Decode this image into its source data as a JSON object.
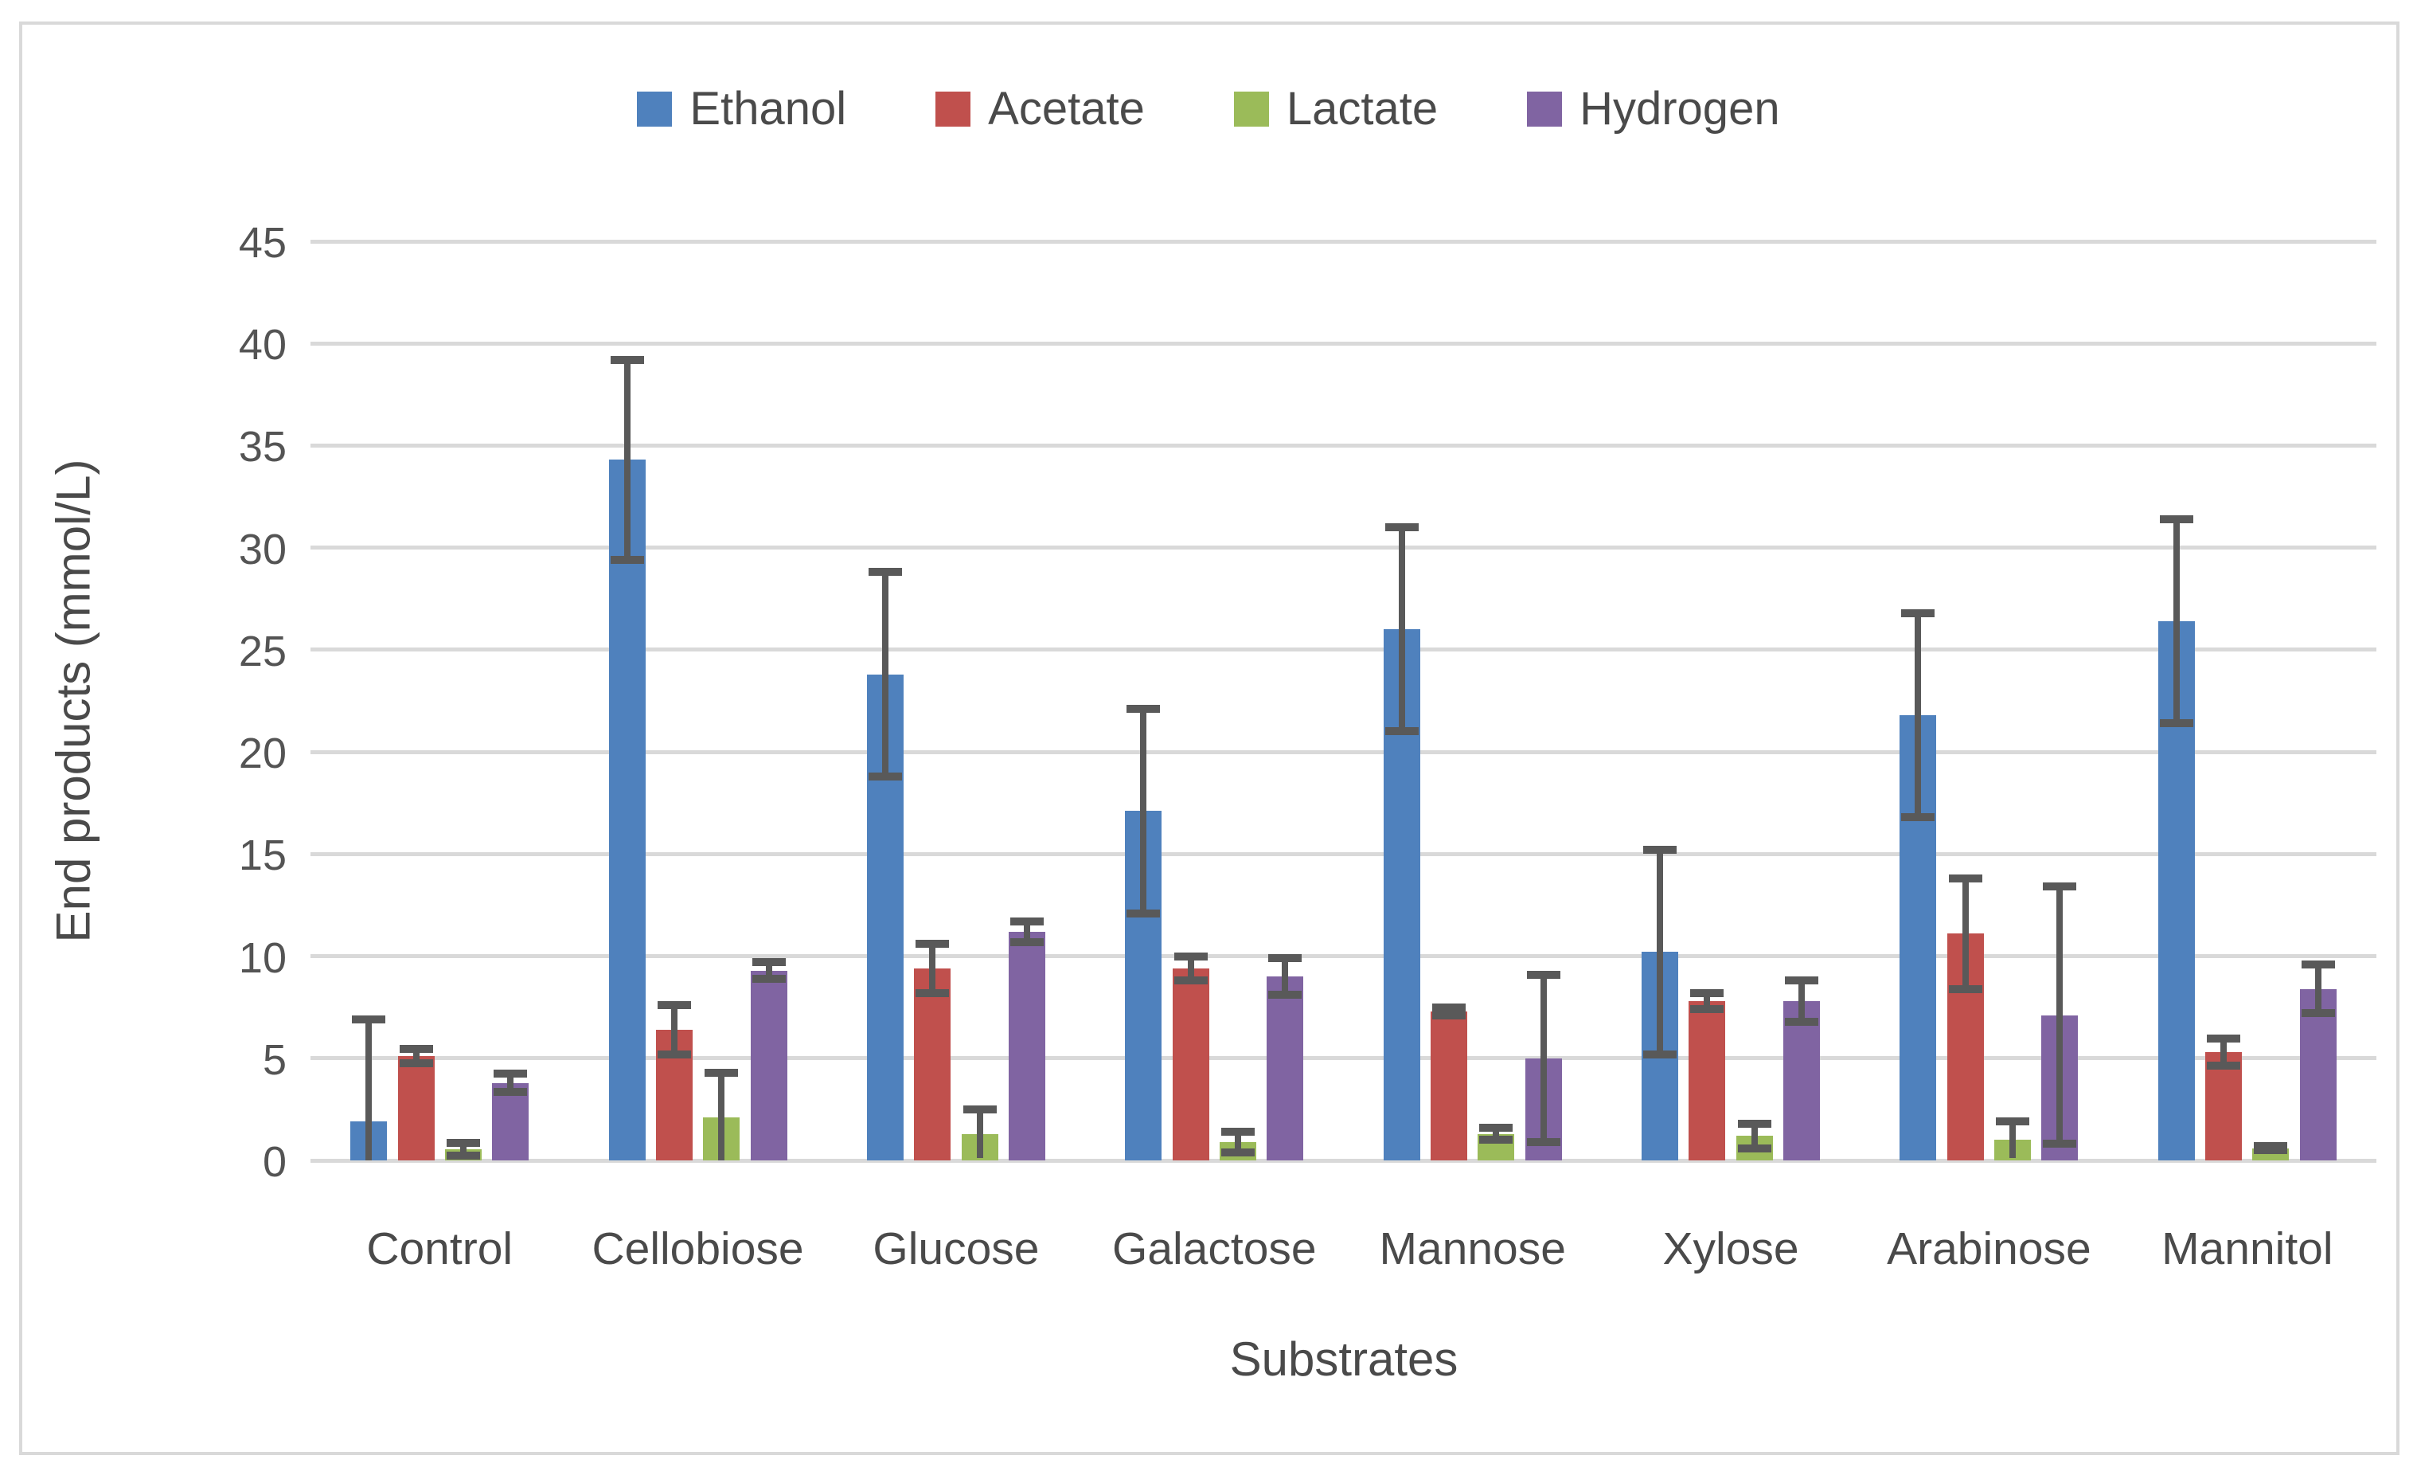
{
  "window": {
    "background": "#ffffff",
    "frame_border_color": "#d9d9d9"
  },
  "legend": {
    "position": "top-center",
    "items": [
      {
        "label": "Ethanol",
        "color": "#4f81bd"
      },
      {
        "label": "Acetate",
        "color": "#c0504d"
      },
      {
        "label": "Lactate",
        "color": "#9bbb59"
      },
      {
        "label": "Hydrogen",
        "color": "#8064a2"
      }
    ]
  },
  "y_axis": {
    "title": "End products (mmol/L)",
    "tick_labels": [
      "0",
      "5",
      "10",
      "15",
      "20",
      "25",
      "30",
      "35",
      "40",
      "45"
    ],
    "min": 0,
    "max": 45,
    "gridline_color": "#d9d9d9",
    "text_color": "#545454"
  },
  "x_axis": {
    "title": "Substrates",
    "labels": [
      "Control",
      "Cellobiose",
      "Glucose",
      "Galactose",
      "Mannose",
      "Xylose",
      "Arabinose",
      "Mannitol"
    ]
  },
  "chart_data": {
    "type": "bar",
    "title": "",
    "xlabel": "Substrates",
    "ylabel": "End products (mmol/L)",
    "ylim": [
      0,
      45
    ],
    "grid": true,
    "legend_position": "top",
    "error_bar_color": "#595959",
    "categories": [
      "Control",
      "Cellobiose",
      "Glucose",
      "Galactose",
      "Mannose",
      "Xylose",
      "Arabinose",
      "Mannitol"
    ],
    "series": [
      {
        "name": "Ethanol",
        "color": "#4f81bd",
        "values": [
          1.9,
          34.3,
          23.8,
          17.1,
          26.0,
          10.2,
          21.8,
          26.4
        ],
        "errors": [
          5.0,
          4.9,
          5.0,
          5.0,
          5.0,
          5.0,
          5.0,
          5.0
        ]
      },
      {
        "name": "Acetate",
        "color": "#c0504d",
        "values": [
          5.1,
          6.4,
          9.4,
          9.4,
          7.3,
          7.8,
          11.1,
          5.3
        ],
        "errors": [
          0.35,
          1.2,
          1.2,
          0.6,
          0.2,
          0.4,
          2.7,
          0.65
        ]
      },
      {
        "name": "Lactate",
        "color": "#9bbb59",
        "values": [
          0.55,
          2.1,
          1.3,
          0.9,
          1.3,
          1.2,
          1.0,
          0.6
        ],
        "errors": [
          0.3,
          2.2,
          1.2,
          0.5,
          0.3,
          0.6,
          0.9,
          0.1
        ]
      },
      {
        "name": "Hydrogen",
        "color": "#8064a2",
        "values": [
          3.8,
          9.3,
          11.2,
          9.0,
          5.0,
          7.8,
          7.1,
          8.4
        ],
        "errors": [
          0.45,
          0.4,
          0.5,
          0.9,
          4.1,
          1.0,
          6.3,
          1.2
        ]
      }
    ]
  }
}
